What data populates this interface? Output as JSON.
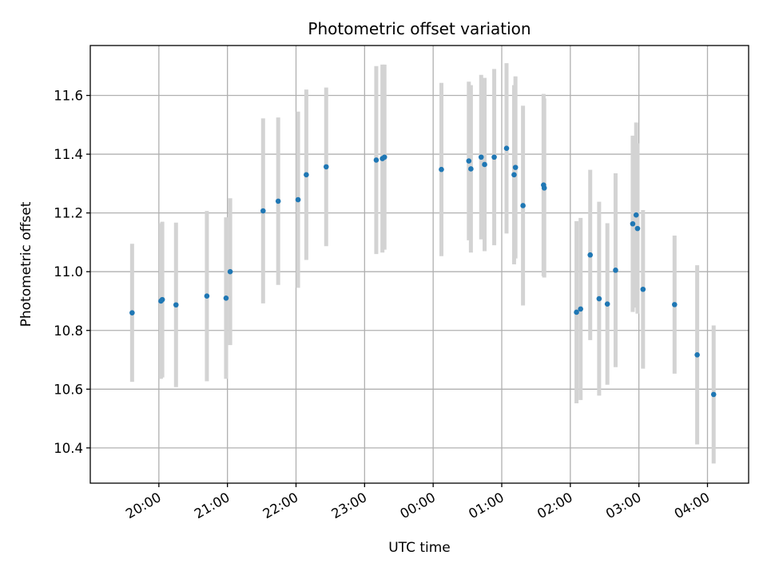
{
  "chart_data": {
    "type": "scatter",
    "title": "Photometric offset variation",
    "xlabel": "UTC time",
    "ylabel": "Photometric offset",
    "x_axis_type": "time",
    "x_ticks": [
      "20:00",
      "21:00",
      "22:00",
      "23:00",
      "00:00",
      "01:00",
      "02:00",
      "03:00",
      "04:00"
    ],
    "x_tick_hours": [
      20,
      21,
      22,
      23,
      24,
      25,
      26,
      27,
      28
    ],
    "xlim_hours": [
      19.0,
      28.6
    ],
    "ylim": [
      10.28,
      11.77
    ],
    "y_ticks": [
      10.4,
      10.6,
      10.8,
      11.0,
      11.2,
      11.4,
      11.6
    ],
    "y_tick_labels": [
      "10.4",
      "10.6",
      "10.8",
      "11.0",
      "11.2",
      "11.4",
      "11.6"
    ],
    "grid": true,
    "error_bar_color": "#d3d3d3",
    "point_color": "#1f77b4",
    "points": [
      {
        "time": "19:36",
        "hour": 19.61,
        "y": 10.86,
        "err": 0.235
      },
      {
        "time": "20:02",
        "hour": 20.03,
        "y": 10.9,
        "err": 0.265
      },
      {
        "time": "20:03",
        "hour": 20.05,
        "y": 10.905,
        "err": 0.265
      },
      {
        "time": "20:15",
        "hour": 20.25,
        "y": 10.887,
        "err": 0.28
      },
      {
        "time": "20:42",
        "hour": 20.7,
        "y": 10.917,
        "err": 0.29
      },
      {
        "time": "20:58",
        "hour": 20.98,
        "y": 10.91,
        "err": 0.275
      },
      {
        "time": "21:02",
        "hour": 21.04,
        "y": 11.0,
        "err": 0.25
      },
      {
        "time": "21:31",
        "hour": 21.52,
        "y": 11.207,
        "err": 0.315
      },
      {
        "time": "21:44",
        "hour": 21.74,
        "y": 11.24,
        "err": 0.285
      },
      {
        "time": "22:02",
        "hour": 22.03,
        "y": 11.245,
        "err": 0.3
      },
      {
        "time": "22:09",
        "hour": 22.15,
        "y": 11.33,
        "err": 0.29
      },
      {
        "time": "22:26",
        "hour": 22.44,
        "y": 11.357,
        "err": 0.27
      },
      {
        "time": "23:10",
        "hour": 23.17,
        "y": 11.38,
        "err": 0.32
      },
      {
        "time": "23:15",
        "hour": 23.26,
        "y": 11.385,
        "err": 0.32
      },
      {
        "time": "23:17",
        "hour": 23.29,
        "y": 11.39,
        "err": 0.315
      },
      {
        "time": "00:07",
        "hour": 24.12,
        "y": 11.348,
        "err": 0.295
      },
      {
        "time": "00:31",
        "hour": 24.52,
        "y": 11.377,
        "err": 0.27
      },
      {
        "time": "00:33",
        "hour": 24.55,
        "y": 11.35,
        "err": 0.285
      },
      {
        "time": "00:42",
        "hour": 24.7,
        "y": 11.39,
        "err": 0.28
      },
      {
        "time": "00:45",
        "hour": 24.75,
        "y": 11.365,
        "err": 0.295
      },
      {
        "time": "00:53",
        "hour": 24.89,
        "y": 11.39,
        "err": 0.3
      },
      {
        "time": "01:04",
        "hour": 25.07,
        "y": 11.42,
        "err": 0.29
      },
      {
        "time": "01:11",
        "hour": 25.18,
        "y": 11.33,
        "err": 0.305
      },
      {
        "time": "01:12",
        "hour": 25.2,
        "y": 11.355,
        "err": 0.31
      },
      {
        "time": "01:19",
        "hour": 25.31,
        "y": 11.225,
        "err": 0.34
      },
      {
        "time": "01:36",
        "hour": 25.61,
        "y": 11.295,
        "err": 0.31
      },
      {
        "time": "01:37",
        "hour": 25.62,
        "y": 11.285,
        "err": 0.305
      },
      {
        "time": "02:05",
        "hour": 26.09,
        "y": 10.862,
        "err": 0.31
      },
      {
        "time": "02:09",
        "hour": 26.15,
        "y": 10.873,
        "err": 0.31
      },
      {
        "time": "02:17",
        "hour": 26.29,
        "y": 11.057,
        "err": 0.29
      },
      {
        "time": "02:25",
        "hour": 26.42,
        "y": 10.908,
        "err": 0.33
      },
      {
        "time": "02:32",
        "hour": 26.54,
        "y": 10.89,
        "err": 0.275
      },
      {
        "time": "02:39",
        "hour": 26.66,
        "y": 11.005,
        "err": 0.33
      },
      {
        "time": "02:55",
        "hour": 26.91,
        "y": 11.163,
        "err": 0.3
      },
      {
        "time": "02:57",
        "hour": 26.96,
        "y": 11.193,
        "err": 0.315
      },
      {
        "time": "02:59",
        "hour": 26.98,
        "y": 11.147,
        "err": 0.29
      },
      {
        "time": "03:03",
        "hour": 27.06,
        "y": 10.94,
        "err": 0.27
      },
      {
        "time": "03:31",
        "hour": 27.52,
        "y": 10.888,
        "err": 0.235
      },
      {
        "time": "03:51",
        "hour": 27.85,
        "y": 10.717,
        "err": 0.305
      },
      {
        "time": "04:05",
        "hour": 28.09,
        "y": 10.582,
        "err": 0.235
      }
    ]
  }
}
